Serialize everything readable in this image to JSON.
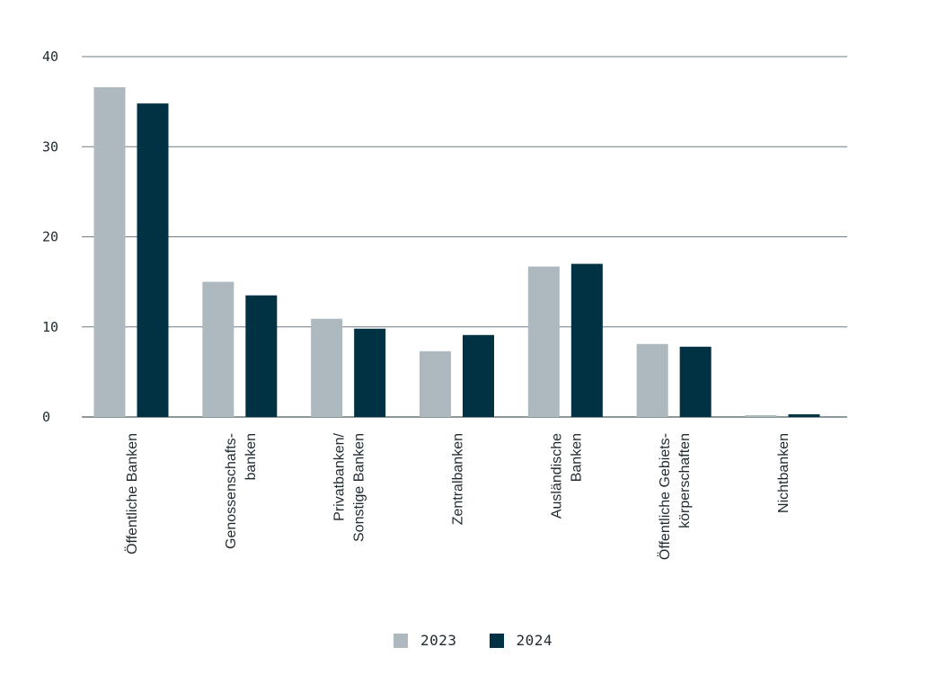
{
  "chart_data": {
    "type": "bar",
    "categories": [
      [
        "Öffentliche Banken"
      ],
      [
        "Genossenschafts-",
        "banken"
      ],
      [
        "Privatbanken/",
        "Sonstige Banken"
      ],
      [
        "Zentralbanken"
      ],
      [
        "Ausländische",
        "Banken"
      ],
      [
        "Öffentliche Gebiets-",
        "körperschaften"
      ],
      [
        "Nichtbanken"
      ]
    ],
    "series": [
      {
        "name": "2023",
        "color": "#adb9bf",
        "values": [
          36.6,
          15.0,
          10.9,
          7.3,
          16.7,
          8.1,
          0.2
        ]
      },
      {
        "name": "2024",
        "color": "#003243",
        "values": [
          34.8,
          13.5,
          9.8,
          9.1,
          17.0,
          7.8,
          0.3
        ]
      }
    ],
    "ylim": [
      0,
      40
    ],
    "yticks": [
      "0",
      "10",
      "20",
      "30",
      "40"
    ],
    "grid": true,
    "legend_position": "bottom-center",
    "title": "",
    "xlabel": "",
    "ylabel": ""
  }
}
